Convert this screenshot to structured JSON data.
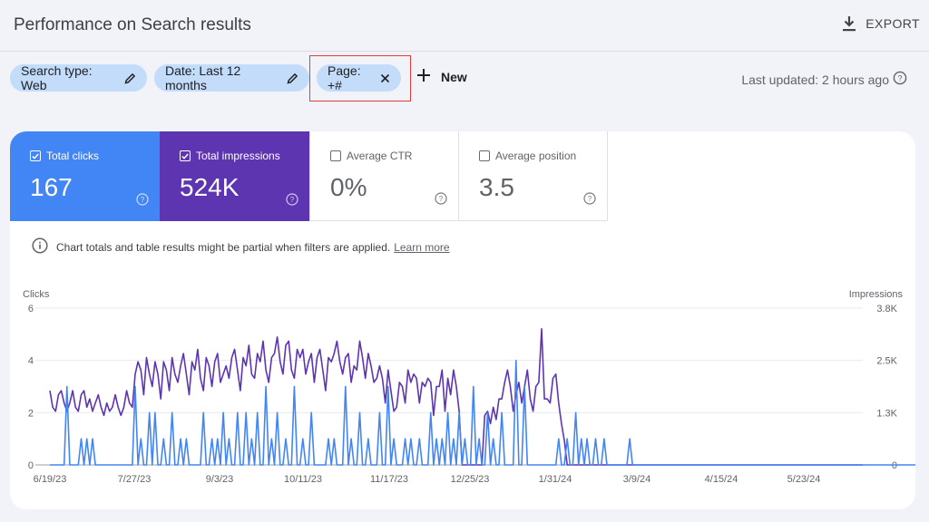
{
  "header": {
    "title": "Performance on Search results",
    "export_label": "EXPORT"
  },
  "filters": {
    "search_type": "Search type: Web",
    "date": "Date: Last 12 months",
    "page": "Page: +#",
    "new_label": "New",
    "last_updated": "Last updated: 2 hours ago"
  },
  "metrics": {
    "clicks": {
      "label": "Total clicks",
      "value": "167",
      "checked": true
    },
    "impressions": {
      "label": "Total impressions",
      "value": "524K",
      "checked": true
    },
    "ctr": {
      "label": "Average CTR",
      "value": "0%",
      "checked": false
    },
    "position": {
      "label": "Average position",
      "value": "3.5",
      "checked": false
    }
  },
  "notice": {
    "text": "Chart totals and table results might be partial when filters are applied.",
    "link": "Learn more"
  },
  "colors": {
    "clicks": "#4285f4",
    "impressions": "#5e35b1",
    "chip": "#c2dcfa",
    "highlight": "#e03b3b"
  },
  "chart_data": {
    "type": "line",
    "ylabel_left": "Clicks",
    "ylabel_right": "Impressions",
    "y_left_ticks": [
      "0",
      "2",
      "4",
      "6"
    ],
    "y_right_ticks": [
      "0",
      "1.3K",
      "2.5K",
      "3.8K"
    ],
    "ylim_left": [
      0,
      6
    ],
    "ylim_right": [
      0,
      3800
    ],
    "x_ticks": [
      "6/19/23",
      "7/27/23",
      "9/3/23",
      "10/11/23",
      "11/17/23",
      "12/25/23",
      "1/31/24",
      "3/9/24",
      "4/15/24",
      "5/23/24"
    ],
    "series": [
      {
        "name": "Impressions",
        "color": "#5e35b1",
        "values": [
          1800,
          1400,
          1300,
          1700,
          1800,
          1500,
          1300,
          1500,
          1800,
          1400,
          1300,
          1700,
          1800,
          1400,
          1600,
          1300,
          1500,
          1700,
          1400,
          1200,
          1500,
          1300,
          1400,
          1700,
          1400,
          1200,
          1400,
          1800,
          1500,
          1400,
          2200,
          2500,
          2300,
          1700,
          2600,
          2200,
          1900,
          2500,
          2200,
          1600,
          2500,
          2300,
          1800,
          2600,
          2200,
          2000,
          2400,
          2700,
          2200,
          1700,
          2500,
          2300,
          2800,
          2100,
          1800,
          2600,
          2400,
          1900,
          2500,
          2700,
          2000,
          2200,
          2400,
          2100,
          2600,
          2800,
          2300,
          1800,
          2600,
          2400,
          2900,
          2200,
          2100,
          2700,
          2500,
          3000,
          2300,
          2000,
          2600,
          2700,
          3100,
          2500,
          2200,
          2900,
          3000,
          2300,
          2100,
          2800,
          2600,
          2800,
          2200,
          2500,
          2700,
          2000,
          2600,
          2800,
          2300,
          1800,
          2600,
          2500,
          2700,
          3000,
          2500,
          2200,
          2600,
          2700,
          2000,
          2400,
          2300,
          3000,
          2600,
          2100,
          2700,
          2400,
          2000,
          2100,
          2400,
          2100,
          1500,
          2300,
          1800,
          1300,
          1400,
          2000,
          1900,
          1500,
          2300,
          2000,
          2200,
          2100,
          1500,
          2000,
          1900,
          2100,
          2000,
          1200,
          1900,
          1900,
          2300,
          1300,
          2100,
          1700,
          2300,
          1900,
          1300,
          0,
          0,
          0,
          0,
          0,
          0,
          0,
          0,
          1200,
          1300,
          1000,
          1400,
          1100,
          1600,
          1600,
          2000,
          2300,
          1900,
          1300,
          1700,
          2000,
          1500,
          1900,
          2300,
          1600,
          1300,
          1900,
          2000,
          3300,
          1600,
          1600,
          1500,
          2100,
          2200,
          1500,
          1000,
          600,
          0,
          0,
          0,
          0,
          0,
          0,
          0,
          0,
          0,
          0,
          0,
          0,
          0,
          0,
          0,
          0,
          0,
          0,
          0,
          0,
          0,
          0,
          0,
          0,
          0,
          0,
          0,
          0,
          0,
          0,
          0,
          0,
          0,
          0,
          0,
          0,
          0,
          0,
          0,
          0,
          0,
          0,
          0,
          0,
          0,
          0,
          0,
          0,
          0,
          0,
          0,
          0,
          0,
          0,
          0,
          0,
          0,
          0,
          0,
          0,
          0,
          0,
          0,
          0,
          0,
          0,
          0,
          0,
          0,
          0,
          0,
          0,
          0,
          0,
          0,
          0,
          0,
          0,
          0,
          0,
          0,
          0,
          0,
          0,
          0,
          0,
          0,
          0,
          0,
          0,
          0,
          0,
          0,
          0,
          0,
          0,
          0,
          0,
          0,
          0,
          0,
          0,
          0,
          0,
          0
        ]
      },
      {
        "name": "Clicks",
        "color": "#4285f4",
        "values": [
          0,
          0,
          0,
          0,
          0,
          0,
          3,
          0,
          0,
          0,
          0,
          1,
          0,
          1,
          0,
          1,
          0,
          0,
          0,
          0,
          0,
          0,
          0,
          0,
          0,
          0,
          0,
          0,
          0,
          0,
          3,
          0,
          1,
          0,
          0,
          2,
          0,
          2,
          0,
          0,
          1,
          0,
          0,
          2,
          0,
          0,
          1,
          0,
          1,
          0,
          0,
          0,
          0,
          0,
          2,
          0,
          0,
          1,
          0,
          1,
          0,
          2,
          0,
          1,
          0,
          0,
          2,
          0,
          0,
          2,
          0,
          1,
          0,
          2,
          0,
          0,
          3,
          0,
          1,
          0,
          2,
          0,
          0,
          1,
          0,
          0,
          3,
          0,
          0,
          1,
          0,
          0,
          2,
          0,
          0,
          0,
          0,
          0,
          1,
          0,
          1,
          0,
          0,
          0,
          3,
          0,
          1,
          0,
          0,
          2,
          0,
          0,
          1,
          0,
          0,
          0,
          2,
          0,
          0,
          3,
          0,
          1,
          0,
          0,
          0,
          1,
          0,
          1,
          0,
          0,
          1,
          0,
          0,
          0,
          2,
          0,
          1,
          0,
          1,
          0,
          2,
          0,
          1,
          0,
          2,
          0,
          1,
          0,
          0,
          3,
          0,
          1,
          0,
          0,
          2,
          0,
          1,
          0,
          0,
          2,
          0,
          0,
          0,
          0,
          4,
          0,
          0,
          3,
          0,
          0,
          0,
          0,
          0,
          0,
          0,
          0,
          0,
          0,
          0,
          1,
          0,
          0,
          1,
          0,
          0,
          2,
          0,
          1,
          0,
          1,
          0,
          0,
          1,
          0,
          0,
          1,
          0,
          0,
          0,
          0,
          0,
          0,
          0,
          0,
          1,
          0,
          0,
          0,
          0,
          0,
          0,
          0,
          0,
          0,
          0,
          0,
          0,
          0,
          0,
          0,
          0,
          0,
          0,
          0,
          0,
          0,
          0,
          0,
          0,
          0,
          0,
          0,
          0,
          0,
          0,
          0,
          0,
          0,
          0,
          0,
          0,
          0,
          0,
          0,
          0,
          0,
          0,
          0,
          0,
          0,
          0,
          0,
          0,
          0,
          0,
          0,
          0,
          0,
          0,
          0,
          0,
          0,
          0,
          0,
          0,
          0,
          0,
          0,
          0,
          0,
          0,
          0,
          0,
          0,
          0,
          0,
          0,
          0,
          0,
          0,
          0,
          0,
          0,
          0,
          0,
          0,
          0,
          0,
          0,
          0,
          0,
          0,
          0,
          0,
          0,
          0,
          0,
          0,
          0,
          0,
          0,
          0,
          0,
          0,
          0,
          0,
          0,
          0,
          0,
          0,
          0,
          0,
          0,
          0,
          0,
          0,
          0,
          0,
          0
        ]
      }
    ]
  }
}
